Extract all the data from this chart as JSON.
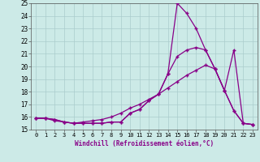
{
  "xlabel": "Windchill (Refroidissement éolien,°C)",
  "bg_color": "#cceae7",
  "grid_color": "#aacccc",
  "line_color": "#880088",
  "xlim": [
    -0.5,
    23.5
  ],
  "ylim": [
    15,
    25
  ],
  "xticks": [
    0,
    1,
    2,
    3,
    4,
    5,
    6,
    7,
    8,
    9,
    10,
    11,
    12,
    13,
    14,
    15,
    16,
    17,
    18,
    19,
    20,
    21,
    22,
    23
  ],
  "yticks": [
    15,
    16,
    17,
    18,
    19,
    20,
    21,
    22,
    23,
    24,
    25
  ],
  "series1_x": [
    0,
    1,
    2,
    3,
    4,
    5,
    6,
    7,
    8,
    9,
    10,
    11,
    12,
    13,
    14,
    15,
    16,
    17,
    18,
    19,
    20,
    21,
    22,
    23
  ],
  "series1_y": [
    15.9,
    15.9,
    15.8,
    15.6,
    15.5,
    15.5,
    15.5,
    15.5,
    15.6,
    15.6,
    16.3,
    16.6,
    17.3,
    17.8,
    19.4,
    25.0,
    24.2,
    23.0,
    21.3,
    19.8,
    18.1,
    16.5,
    15.5,
    15.4
  ],
  "series2_x": [
    0,
    1,
    2,
    3,
    4,
    5,
    6,
    7,
    8,
    9,
    10,
    11,
    12,
    13,
    14,
    15,
    16,
    17,
    18,
    19,
    20,
    21,
    22,
    23
  ],
  "series2_y": [
    15.9,
    15.9,
    15.8,
    15.6,
    15.5,
    15.5,
    15.5,
    15.5,
    15.6,
    15.6,
    16.3,
    16.6,
    17.3,
    17.8,
    19.4,
    20.8,
    21.3,
    21.5,
    21.3,
    19.8,
    18.1,
    21.3,
    15.5,
    15.4
  ],
  "series3_x": [
    0,
    1,
    2,
    3,
    4,
    5,
    6,
    7,
    8,
    9,
    10,
    11,
    12,
    13,
    14,
    15,
    16,
    17,
    18,
    19,
    20,
    21,
    22,
    23
  ],
  "series3_y": [
    15.9,
    15.9,
    15.7,
    15.6,
    15.5,
    15.6,
    15.7,
    15.8,
    16.0,
    16.3,
    16.7,
    17.0,
    17.4,
    17.8,
    18.3,
    18.8,
    19.3,
    19.7,
    20.1,
    19.8,
    18.1,
    16.5,
    15.5,
    15.4
  ]
}
